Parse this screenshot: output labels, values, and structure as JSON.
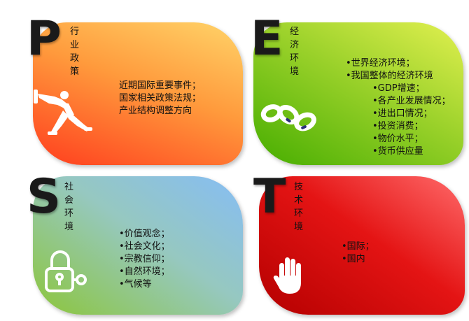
{
  "quadrants": {
    "p": {
      "letter": "P",
      "heading": "行业政策",
      "lines": [
        "近期国际重要事件；",
        "国家相关政策法规；",
        "产业结构调整方向"
      ],
      "icon": "pushing-person-icon",
      "color_start": "#ff3b1f",
      "color_end": "#ffcc55"
    },
    "e": {
      "letter": "E",
      "heading": "经济环境",
      "lines": [
        "•世界经济环境；",
        "•我国整体的经济环境",
        "•GDP增速；",
        "•各产业发展情况；",
        "•进出口情况；",
        "•投资消费；",
        "•物价水平；",
        "•货币供应量"
      ],
      "icon": "chain-links-icon",
      "color_start": "#4db400",
      "color_end": "#e6f25a"
    },
    "s": {
      "letter": "S",
      "heading": "社会环境",
      "lines": [
        "•价值观念；",
        "•社会文化；",
        "•宗教信仰；",
        "•自然环境；",
        "•气候等"
      ],
      "icon": "padlock-key-icon",
      "color_start": "#8fc83c",
      "color_end": "#8ec2f2"
    },
    "t": {
      "letter": "T",
      "heading": "技术环境",
      "lines": [
        "•国际；",
        "•国内"
      ],
      "icon": "stop-hand-icon",
      "color_start": "#c80000",
      "color_end": "#ff5a5a"
    }
  }
}
